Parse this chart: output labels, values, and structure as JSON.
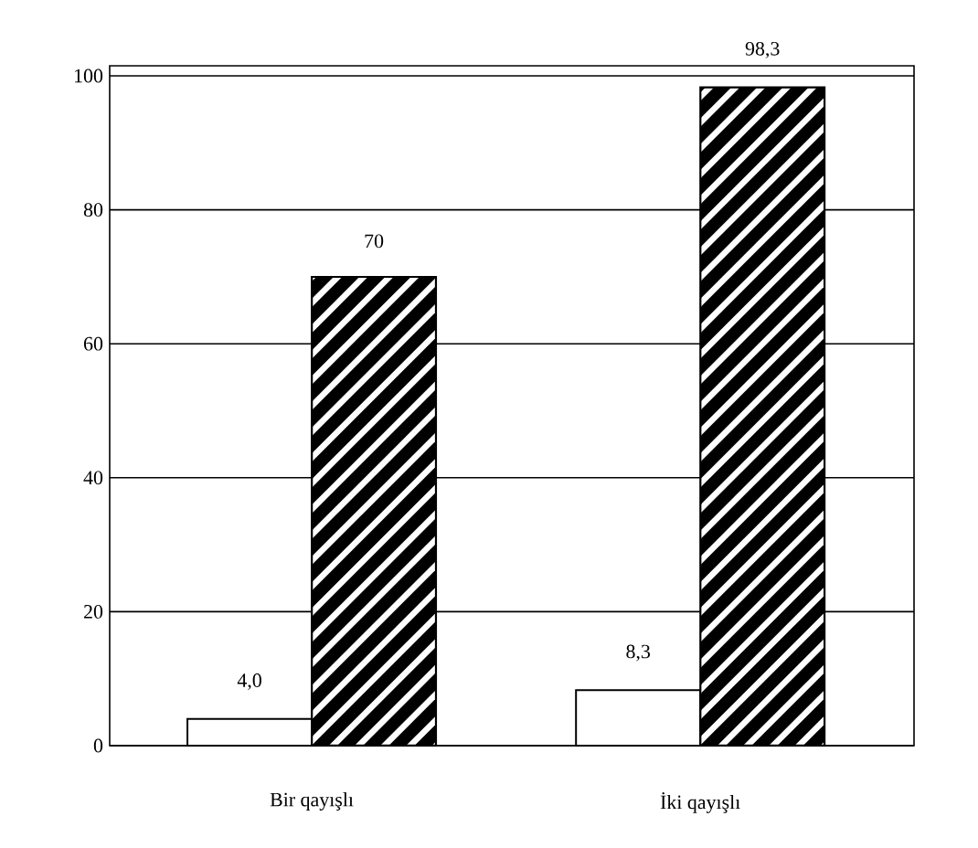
{
  "chart_data": {
    "type": "bar",
    "categories": [
      "Bir qayışlı",
      "İki qayışlı"
    ],
    "series": [
      {
        "color": "#ffffff",
        "values": [
          4.0,
          8.3
        ],
        "value_labels": [
          "4,0",
          "8,3"
        ]
      },
      {
        "color": "#000000",
        "values": [
          70,
          98.3
        ],
        "value_labels": [
          "70",
          "98,3"
        ]
      }
    ],
    "ylim": [
      0,
      101.5
    ],
    "yticks": [
      0,
      20,
      40,
      60,
      80,
      100
    ],
    "grid": "y"
  }
}
